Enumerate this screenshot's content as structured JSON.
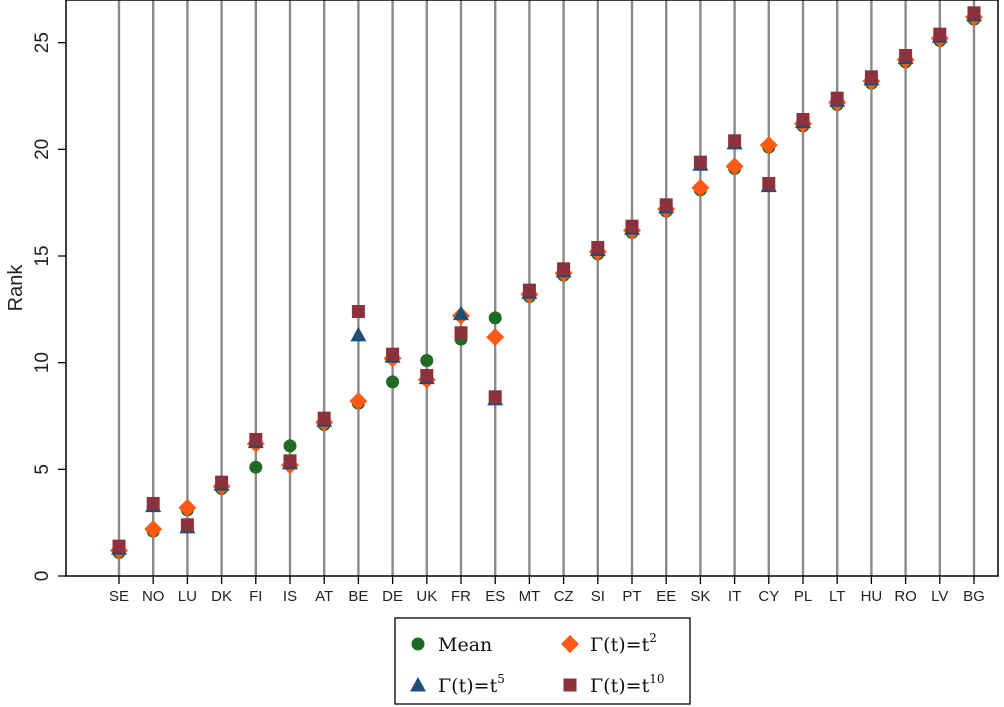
{
  "chart_data": {
    "type": "scatter",
    "title": "",
    "xlabel": "",
    "ylabel": "Rank",
    "ylim": [
      0,
      27
    ],
    "yticks": [
      0,
      5,
      10,
      15,
      20,
      25
    ],
    "grid": "vertical",
    "legend_position": "bottom",
    "categories": [
      "SE",
      "NO",
      "LU",
      "DK",
      "FI",
      "IS",
      "AT",
      "BE",
      "DE",
      "UK",
      "FR",
      "ES",
      "MT",
      "CZ",
      "SI",
      "PT",
      "EE",
      "SK",
      "IT",
      "CY",
      "PL",
      "LT",
      "HU",
      "RO",
      "LV",
      "BG"
    ],
    "series": [
      {
        "name": "Mean",
        "label_base": "Mean",
        "label_sup": "",
        "marker": "circle",
        "color": "#1f6b25",
        "values": [
          1.1,
          2.1,
          3.1,
          4.1,
          5.1,
          6.1,
          7.1,
          8.1,
          9.1,
          10.1,
          11.1,
          12.1,
          13.1,
          14.1,
          15.1,
          16.1,
          17.1,
          18.1,
          19.1,
          20.1,
          21.1,
          22.1,
          23.1,
          24.1,
          25.1,
          26.1
        ]
      },
      {
        "name": "Γ(t)=t2",
        "label_base": "Γ(t)=t",
        "label_sup": "2",
        "marker": "diamond",
        "color": "#ff5a14",
        "values": [
          1.2,
          2.2,
          3.2,
          4.2,
          6.2,
          5.2,
          7.2,
          8.2,
          10.2,
          9.2,
          12.2,
          11.2,
          13.2,
          14.2,
          15.2,
          16.2,
          17.2,
          18.2,
          19.2,
          20.2,
          21.2,
          22.2,
          23.2,
          24.2,
          25.2,
          26.2
        ]
      },
      {
        "name": "Γ(t)=t5",
        "label_base": "Γ(t)=t",
        "label_sup": "5",
        "marker": "triangle",
        "color": "#1f4e7a",
        "values": [
          1.3,
          3.3,
          2.3,
          4.3,
          6.3,
          5.3,
          7.3,
          11.3,
          10.3,
          9.3,
          12.3,
          8.3,
          13.3,
          14.3,
          15.3,
          16.3,
          17.3,
          19.3,
          20.3,
          18.3,
          21.3,
          22.3,
          23.3,
          24.3,
          25.3,
          26.3
        ]
      },
      {
        "name": "Γ(t)=t10",
        "label_base": "Γ(t)=t",
        "label_sup": "10",
        "marker": "square",
        "color": "#8c323c",
        "values": [
          1.4,
          3.4,
          2.4,
          4.4,
          6.4,
          5.4,
          7.4,
          12.4,
          10.4,
          9.4,
          11.4,
          8.4,
          13.4,
          14.4,
          15.4,
          16.4,
          17.4,
          19.4,
          20.4,
          18.4,
          21.4,
          22.4,
          23.4,
          24.4,
          25.4,
          26.4
        ]
      }
    ],
    "legend_order": [
      0,
      1,
      2,
      3
    ]
  }
}
